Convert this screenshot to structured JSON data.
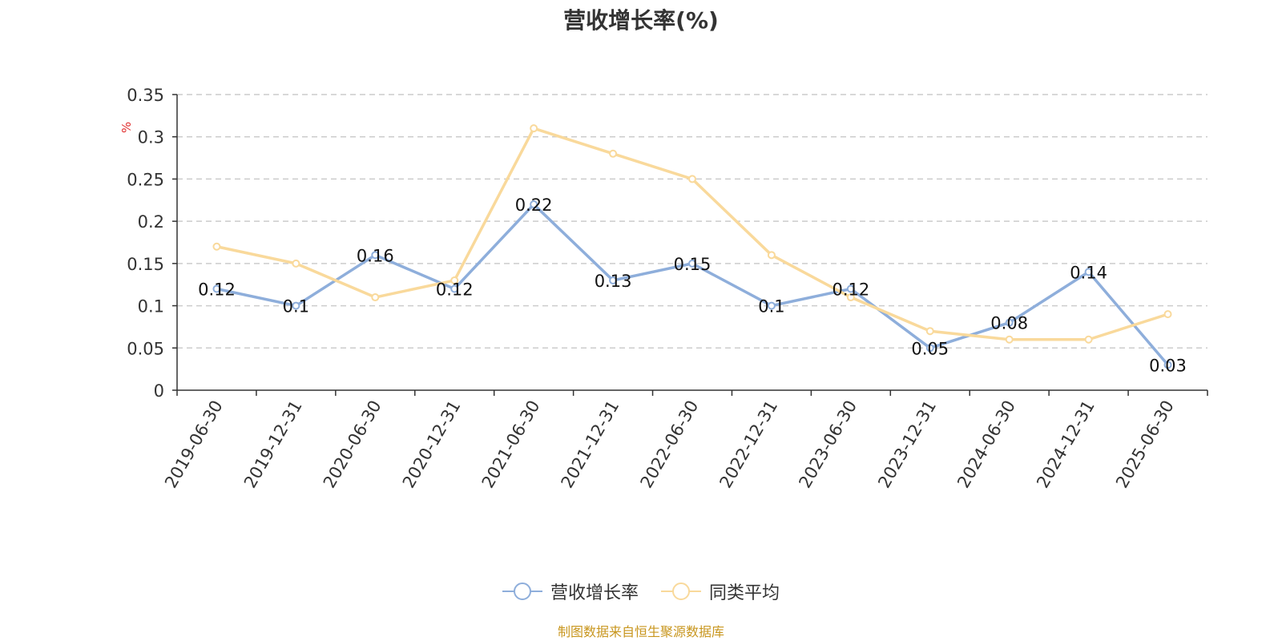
{
  "chart_data": {
    "type": "line",
    "title": "营收增长率(%)",
    "ylabel": "%",
    "ylim": [
      0,
      0.35
    ],
    "yticks": [
      0,
      0.05,
      0.1,
      0.15,
      0.2,
      0.25,
      0.3,
      0.35
    ],
    "ytick_labels": [
      "0",
      "0.05",
      "0.1",
      "0.15",
      "0.2",
      "0.25",
      "0.3",
      "0.35"
    ],
    "grid": true,
    "legend_position": "bottom",
    "x": [
      "2019-06-30",
      "2019-12-31",
      "2020-06-30",
      "2020-12-31",
      "2021-06-30",
      "2021-12-31",
      "2022-06-30",
      "2022-12-31",
      "2023-06-30",
      "2023-12-31",
      "2024-06-30",
      "2024-12-31",
      "2025-06-30"
    ],
    "series": [
      {
        "name": "营收增长率",
        "color": "#8eaedb",
        "values": [
          0.12,
          0.1,
          0.16,
          0.12,
          0.22,
          0.13,
          0.15,
          0.1,
          0.12,
          0.05,
          0.08,
          0.14,
          0.03
        ],
        "value_labels": [
          "0.12",
          "0.1",
          "0.16",
          "0.12",
          "0.22",
          "0.13",
          "0.15",
          "0.1",
          "0.12",
          "0.05",
          "0.08",
          "0.14",
          "0.03"
        ]
      },
      {
        "name": "同类平均",
        "color": "#f9d99b",
        "values": [
          0.17,
          0.15,
          0.11,
          0.13,
          0.31,
          0.28,
          0.25,
          0.16,
          0.11,
          0.07,
          0.06,
          0.06,
          0.09
        ]
      }
    ]
  },
  "source_note": "制图数据来自恒生聚源数据库",
  "colors": {
    "axis": "#333333",
    "grid": "#cccccc",
    "ylabel": "#e03030",
    "source": "#c8961e"
  }
}
